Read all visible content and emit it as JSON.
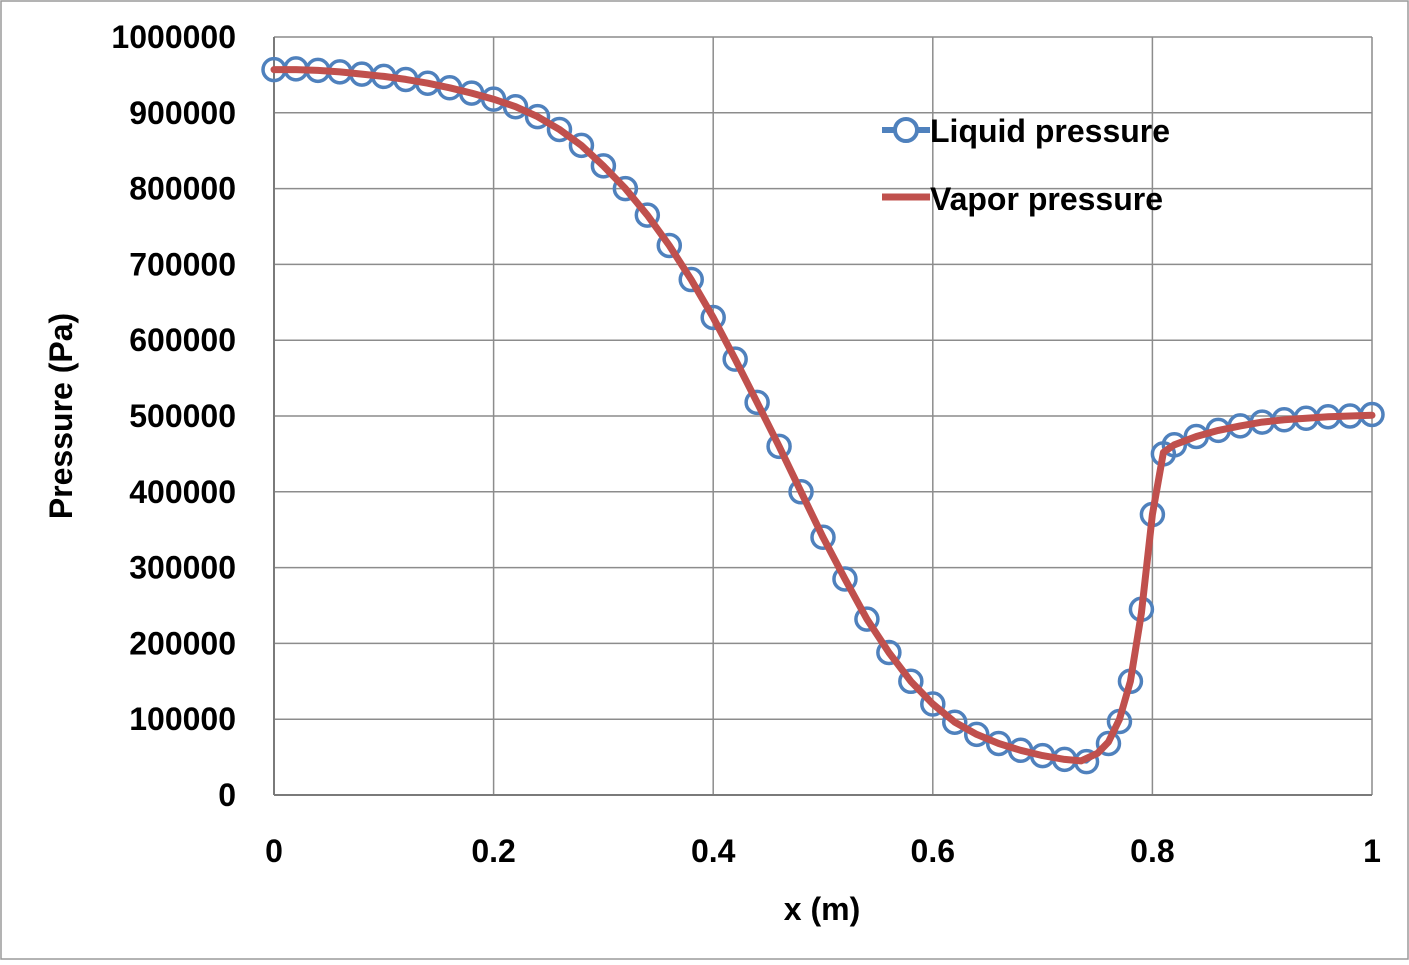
{
  "chart_data": {
    "type": "line",
    "title": "",
    "xlabel": "x (m)",
    "ylabel": "Pressure (Pa)",
    "xlim": [
      0,
      1
    ],
    "ylim": [
      0,
      1000000
    ],
    "x_ticks": [
      "0",
      "0.2",
      "0.4",
      "0.6",
      "0.8",
      "1"
    ],
    "y_ticks": [
      "0",
      "100000",
      "200000",
      "300000",
      "400000",
      "500000",
      "600000",
      "700000",
      "800000",
      "900000",
      "1000000"
    ],
    "grid": true,
    "legend_position": "top-right",
    "series": [
      {
        "name": "Liquid pressure",
        "color": "#4F81BD",
        "marker": "circle",
        "x": [
          0,
          0.02,
          0.04,
          0.06,
          0.08,
          0.1,
          0.12,
          0.14,
          0.16,
          0.18,
          0.2,
          0.22,
          0.24,
          0.26,
          0.28,
          0.3,
          0.32,
          0.34,
          0.36,
          0.38,
          0.4,
          0.42,
          0.44,
          0.46,
          0.48,
          0.5,
          0.52,
          0.54,
          0.56,
          0.58,
          0.6,
          0.62,
          0.64,
          0.66,
          0.68,
          0.7,
          0.72,
          0.74,
          0.76,
          0.77,
          0.78,
          0.79,
          0.8,
          0.81,
          0.82,
          0.84,
          0.86,
          0.88,
          0.9,
          0.92,
          0.94,
          0.96,
          0.98,
          1.0
        ],
        "y": [
          957000,
          958000,
          956000,
          954000,
          951000,
          948000,
          944000,
          939000,
          933000,
          926000,
          918000,
          908000,
          895000,
          878000,
          857000,
          830000,
          800000,
          765000,
          725000,
          680000,
          630000,
          575000,
          518000,
          460000,
          400000,
          340000,
          285000,
          232000,
          188000,
          150000,
          120000,
          96000,
          80000,
          68000,
          59000,
          52000,
          47000,
          44000,
          68000,
          97000,
          150000,
          245000,
          370000,
          450000,
          462000,
          473000,
          481000,
          487000,
          492000,
          495000,
          497000,
          499000,
          500000,
          502000
        ]
      },
      {
        "name": "Vapor pressure",
        "color": "#C0504D",
        "marker": "none",
        "x": [
          0,
          0.02,
          0.04,
          0.06,
          0.08,
          0.1,
          0.12,
          0.14,
          0.16,
          0.18,
          0.2,
          0.22,
          0.24,
          0.26,
          0.28,
          0.3,
          0.32,
          0.34,
          0.36,
          0.38,
          0.4,
          0.42,
          0.44,
          0.46,
          0.48,
          0.5,
          0.52,
          0.54,
          0.56,
          0.58,
          0.6,
          0.62,
          0.64,
          0.66,
          0.68,
          0.7,
          0.72,
          0.735,
          0.75,
          0.76,
          0.77,
          0.78,
          0.79,
          0.8,
          0.81,
          0.82,
          0.84,
          0.86,
          0.88,
          0.9,
          0.92,
          0.94,
          0.96,
          0.98,
          1.0
        ],
        "y": [
          957000,
          957000,
          956000,
          954000,
          951000,
          948000,
          944000,
          939000,
          933000,
          926000,
          918000,
          908000,
          895000,
          878000,
          857000,
          830000,
          800000,
          765000,
          725000,
          680000,
          630000,
          575000,
          518000,
          460000,
          400000,
          340000,
          285000,
          232000,
          188000,
          150000,
          120000,
          96000,
          80000,
          68000,
          59000,
          52000,
          47000,
          45000,
          55000,
          70000,
          100000,
          150000,
          240000,
          370000,
          452000,
          462000,
          473000,
          481000,
          487000,
          492000,
          495000,
          497000,
          499000,
          500000,
          501000
        ]
      }
    ]
  }
}
